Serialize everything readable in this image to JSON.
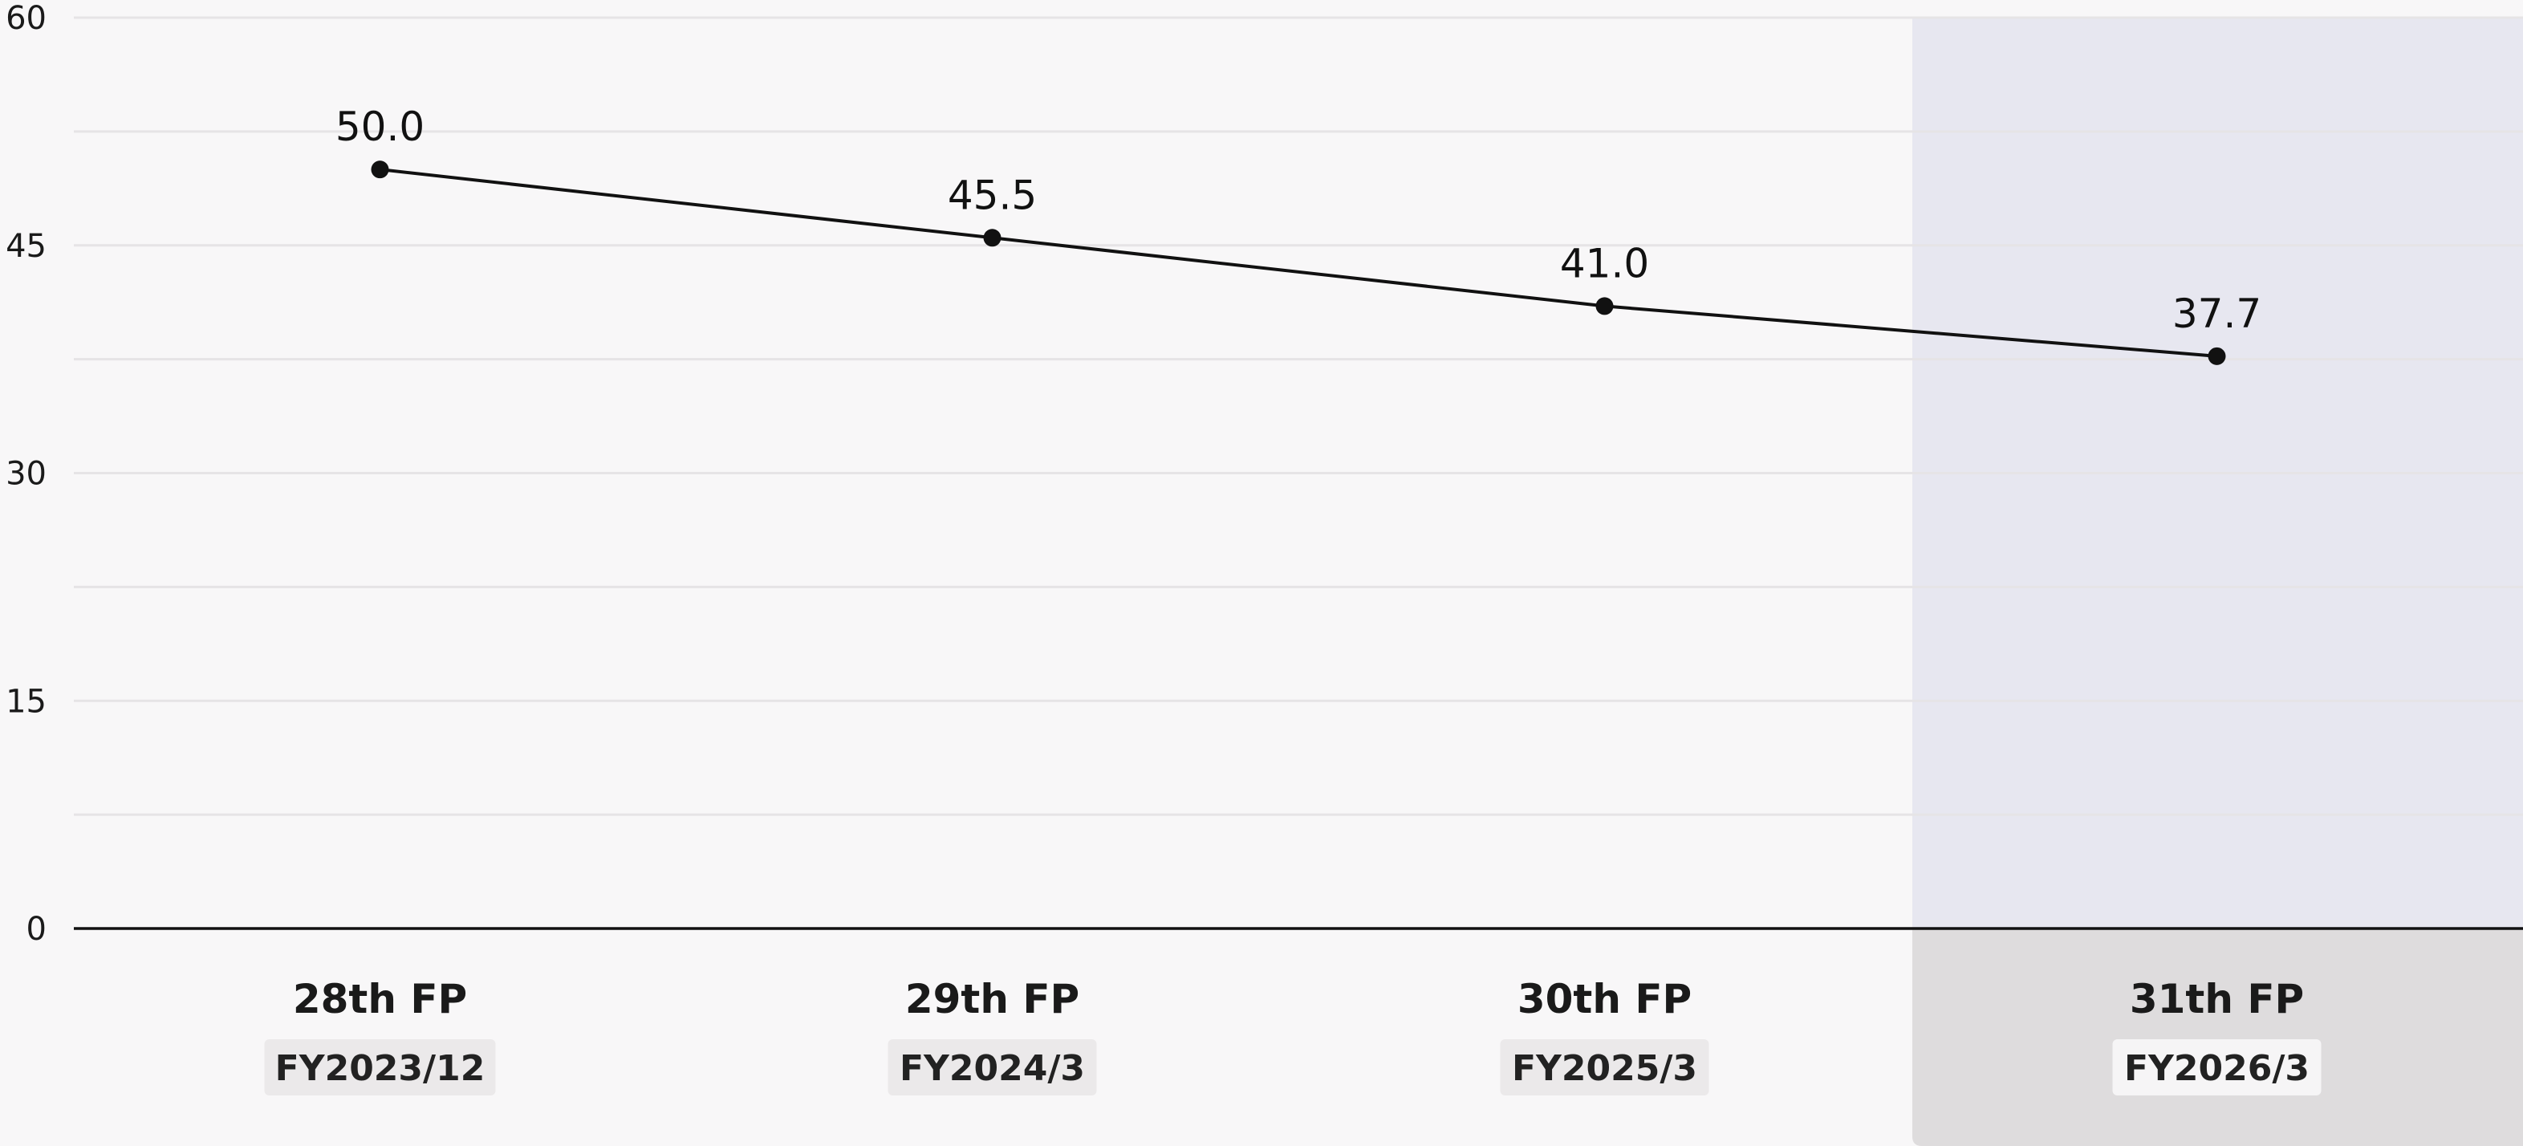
{
  "colors": {
    "background": "#f8f7f8",
    "highlight_plot": "#e7e7f0",
    "highlight_axis": "#dedcdd",
    "gridline": "#e6e4e6",
    "line": "#111111",
    "badge": "#ebe9ea",
    "badge_highlight": "#f6f5f6"
  },
  "chart_data": {
    "type": "line",
    "categories": [
      "28th FP",
      "29th FP",
      "30th FP",
      "31th FP"
    ],
    "sub_categories": [
      "FY2023/12",
      "FY2024/3",
      "FY2025/3",
      "FY2026/3"
    ],
    "values": [
      50.0,
      45.5,
      41.0,
      37.7
    ],
    "data_labels": [
      "50.0",
      "45.5",
      "41.0",
      "37.7"
    ],
    "ylim": [
      0,
      60
    ],
    "yticks": [
      0,
      15,
      30,
      45,
      60
    ],
    "ytick_labels": [
      "0",
      "15",
      "30",
      "45",
      "60"
    ],
    "grid": true,
    "highlighted_category": "31th FP",
    "title": "",
    "xlabel": "",
    "ylabel": ""
  }
}
